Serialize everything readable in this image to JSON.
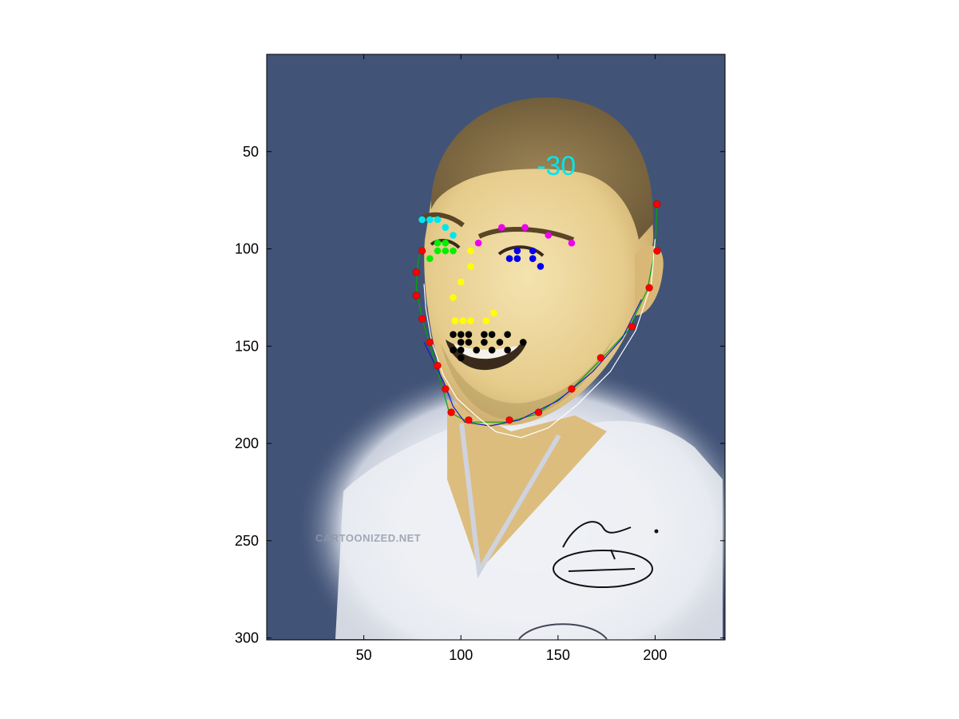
{
  "chart_data": {
    "type": "scatter",
    "background": "image",
    "xlim": [
      0,
      236
    ],
    "ylim": [
      301,
      0
    ],
    "y_reversed": true,
    "grid": false,
    "x_ticks": [
      50,
      100,
      150,
      200
    ],
    "y_ticks": [
      50,
      100,
      150,
      200,
      250,
      300
    ],
    "annotation": {
      "text": "-30",
      "x": 139,
      "y": 62,
      "color": "#00e5ee"
    },
    "image_text": {
      "watermark": "CARTOONIZED.NET",
      "signature": "Zidane 10"
    },
    "colors": {
      "axes_bg": "#415377",
      "jaw": "#ff0000",
      "left_brow": "#00e5ee",
      "left_eye": "#00ee00",
      "right_brow": "#ee00ee",
      "right_eye": "#0000ee",
      "nose": "#ffff00",
      "mouth": "#000000",
      "fit_green": "#00aa00",
      "fit_blue": "#1a1acc",
      "fit_white": "#ffffff"
    },
    "series": [
      {
        "group": "jaw",
        "points": [
          [
            201,
            77
          ],
          [
            201,
            101
          ],
          [
            197,
            120
          ],
          [
            188,
            140
          ],
          [
            172,
            156
          ],
          [
            157,
            172
          ],
          [
            140,
            184
          ],
          [
            125,
            188
          ],
          [
            104,
            188
          ],
          [
            95,
            184
          ],
          [
            92,
            172
          ],
          [
            88,
            160
          ],
          [
            84,
            148
          ],
          [
            80,
            136
          ],
          [
            77,
            124
          ],
          [
            77,
            112
          ],
          [
            80,
            101
          ]
        ]
      },
      {
        "group": "left_brow",
        "points": [
          [
            80,
            85
          ],
          [
            84,
            85
          ],
          [
            88,
            85
          ],
          [
            92,
            89
          ],
          [
            96,
            93
          ]
        ]
      },
      {
        "group": "left_eye",
        "points": [
          [
            88,
            97
          ],
          [
            92,
            97
          ],
          [
            88,
            101
          ],
          [
            92,
            101
          ],
          [
            96,
            101
          ],
          [
            84,
            105
          ]
        ]
      },
      {
        "group": "right_brow",
        "points": [
          [
            109,
            97
          ],
          [
            121,
            89
          ],
          [
            133,
            89
          ],
          [
            145,
            93
          ],
          [
            157,
            97
          ]
        ]
      },
      {
        "group": "right_eye",
        "points": [
          [
            129,
            101
          ],
          [
            137,
            101
          ],
          [
            125,
            105
          ],
          [
            129,
            105
          ],
          [
            137,
            105
          ],
          [
            141,
            109
          ]
        ]
      },
      {
        "group": "nose",
        "points": [
          [
            105,
            101
          ],
          [
            105,
            109
          ],
          [
            100,
            117
          ],
          [
            96,
            125
          ],
          [
            97,
            137
          ],
          [
            101,
            137
          ],
          [
            105,
            137
          ],
          [
            113,
            137
          ],
          [
            117,
            133
          ]
        ]
      },
      {
        "group": "mouth",
        "points": [
          [
            96,
            144
          ],
          [
            100,
            144
          ],
          [
            104,
            144
          ],
          [
            112,
            144
          ],
          [
            116,
            144
          ],
          [
            124,
            144
          ],
          [
            100,
            148
          ],
          [
            104,
            148
          ],
          [
            112,
            148
          ],
          [
            120,
            148
          ],
          [
            132,
            148
          ],
          [
            96,
            152
          ],
          [
            100,
            152
          ],
          [
            108,
            152
          ],
          [
            116,
            152
          ],
          [
            124,
            152
          ],
          [
            100,
            156
          ]
        ]
      }
    ],
    "curves": [
      {
        "group": "fit_green",
        "points": [
          [
            201,
            77
          ],
          [
            200,
            100
          ],
          [
            196,
            121
          ],
          [
            186,
            142
          ],
          [
            171,
            158
          ],
          [
            155,
            174
          ],
          [
            139,
            185
          ],
          [
            124,
            189
          ],
          [
            104,
            189
          ],
          [
            94,
            184
          ],
          [
            90,
            170
          ],
          [
            85,
            152
          ],
          [
            80,
            136
          ],
          [
            77,
            120
          ],
          [
            78,
            106
          ],
          [
            80,
            99
          ]
        ]
      },
      {
        "group": "fit_blue",
        "points": [
          [
            193,
            126
          ],
          [
            183,
            146
          ],
          [
            168,
            163
          ],
          [
            150,
            178
          ],
          [
            130,
            188
          ],
          [
            115,
            191
          ],
          [
            102,
            189
          ],
          [
            96,
            181
          ],
          [
            91,
            168
          ],
          [
            86,
            158
          ],
          [
            81,
            148
          ]
        ]
      },
      {
        "group": "fit_white",
        "points": [
          [
            200,
            95
          ],
          [
            198,
            118
          ],
          [
            190,
            142
          ],
          [
            177,
            163
          ],
          [
            160,
            180
          ],
          [
            145,
            192
          ],
          [
            131,
            197
          ],
          [
            118,
            194
          ],
          [
            108,
            186
          ],
          [
            98,
            177
          ],
          [
            91,
            165
          ],
          [
            85,
            148
          ],
          [
            82,
            131
          ],
          [
            81,
            118
          ]
        ]
      }
    ]
  }
}
